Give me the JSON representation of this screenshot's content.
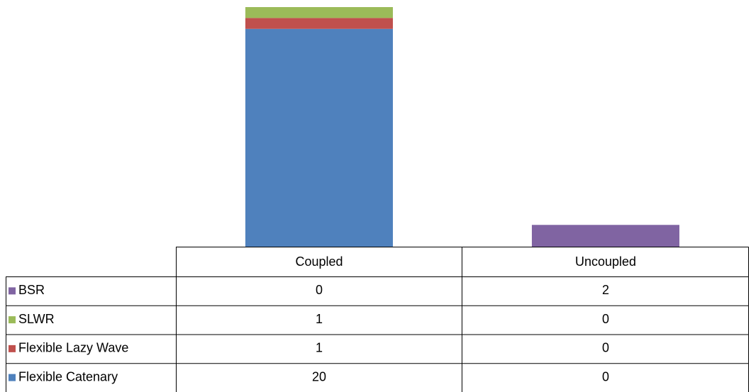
{
  "chart_data": {
    "type": "stacked_bar",
    "categories": [
      "Coupled",
      "Uncoupled"
    ],
    "series": [
      {
        "name": "Flexible Catenary",
        "color": "#4f81bd",
        "values": [
          20,
          0
        ]
      },
      {
        "name": "Flexible Lazy Wave",
        "color": "#c0504d",
        "values": [
          1,
          0
        ]
      },
      {
        "name": "SLWR",
        "color": "#9bbb59",
        "values": [
          1,
          0
        ]
      },
      {
        "name": "BSR",
        "color": "#8064a2",
        "values": [
          0,
          2
        ]
      }
    ],
    "data_table": true
  }
}
